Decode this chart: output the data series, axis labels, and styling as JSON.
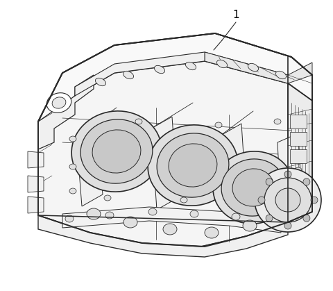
{
  "background_color": "#ffffff",
  "label_number": "1",
  "line_color": "#2a2a2a",
  "text_color": "#000000",
  "label_fontsize": 11,
  "fig_width": 4.8,
  "fig_height": 4.19,
  "dpi": 100,
  "lw_main": 1.1,
  "lw_detail": 0.6,
  "lw_thin": 0.4,
  "white": "#ffffff",
  "light": "#f8f8f8"
}
